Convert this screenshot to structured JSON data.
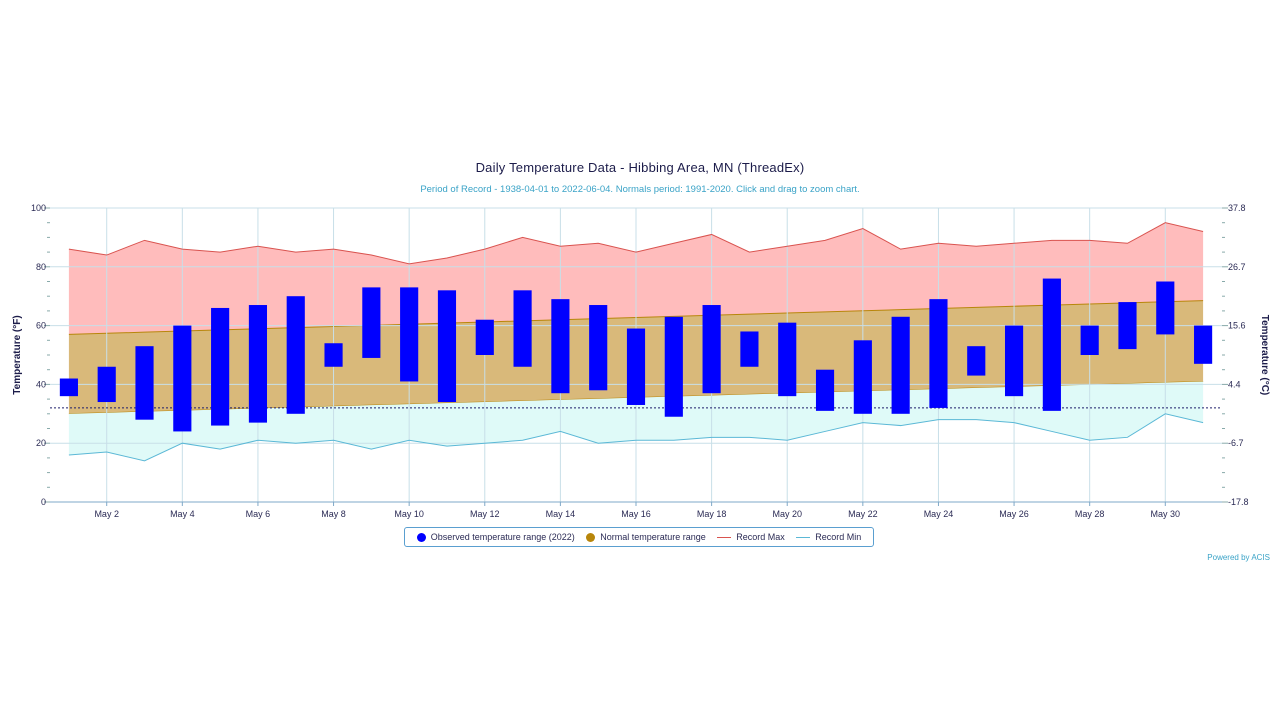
{
  "chart_data": {
    "type": "bar",
    "title": "Daily Temperature Data - Hibbing Area, MN (ThreadEx)",
    "subtitle": "Period of Record - 1938-04-01 to 2022-06-04. Normals period: 1991-2020. Click and drag to zoom chart.",
    "ylabel": "Temperature (°F)",
    "ylabel_right": "Temperature (°C)",
    "ylim": [
      0,
      100
    ],
    "y_ticks": [
      0,
      20,
      40,
      60,
      80,
      100
    ],
    "y_ticks_right": [
      "-17.8",
      "-6.7",
      "4.4",
      "15.6",
      "26.7",
      "37.8"
    ],
    "x_tick_labels": [
      "May 2",
      "May 4",
      "May 6",
      "May 8",
      "May 10",
      "May 12",
      "May 14",
      "May 16",
      "May 18",
      "May 20",
      "May 22",
      "May 24",
      "May 26",
      "May 28",
      "May 30"
    ],
    "x_tick_days": [
      2,
      4,
      6,
      8,
      10,
      12,
      14,
      16,
      18,
      20,
      22,
      24,
      26,
      28,
      30
    ],
    "days": [
      1,
      2,
      3,
      4,
      5,
      6,
      7,
      8,
      9,
      10,
      11,
      12,
      13,
      14,
      15,
      16,
      17,
      18,
      19,
      20,
      21,
      22,
      23,
      24,
      25,
      26,
      27,
      28,
      29,
      30,
      31
    ],
    "freezing_line_f": 32,
    "grid": true,
    "legend_position": "bottom",
    "series": [
      {
        "name": "Observed temperature range (2022)",
        "type": "columnrange",
        "color": "#0000ff",
        "low": [
          36,
          34,
          28,
          24,
          26,
          27,
          30,
          46,
          49,
          41,
          34,
          50,
          46,
          37,
          38,
          33,
          29,
          37,
          46,
          36,
          31,
          30,
          30,
          32,
          43,
          36,
          31,
          50,
          52,
          57,
          47
        ],
        "high": [
          42,
          46,
          53,
          60,
          66,
          67,
          70,
          54,
          73,
          73,
          72,
          62,
          72,
          69,
          67,
          59,
          63,
          67,
          58,
          61,
          45,
          55,
          63,
          69,
          53,
          60,
          76,
          60,
          68,
          75,
          60
        ]
      },
      {
        "name": "Normal temperature range",
        "type": "arearange",
        "color": "#b8860b",
        "low_start": 30,
        "low_end": 41,
        "high_start": 57,
        "high_end": 68.5
      },
      {
        "name": "Record Max",
        "type": "line",
        "color": "#d9534f",
        "values": [
          86,
          84,
          89,
          86,
          85,
          87,
          85,
          86,
          84,
          81,
          83,
          86,
          90,
          87,
          88,
          85,
          88,
          91,
          85,
          87,
          89,
          93,
          86,
          88,
          87,
          88,
          89,
          89,
          88,
          95,
          92
        ]
      },
      {
        "name": "Record Min",
        "type": "line",
        "color": "#5bb8d6",
        "values": [
          16,
          17,
          14,
          20,
          18,
          21,
          20,
          21,
          18,
          21,
          19,
          20,
          21,
          24,
          20,
          21,
          21,
          22,
          22,
          21,
          24,
          27,
          26,
          28,
          28,
          27,
          24,
          21,
          22,
          30,
          27
        ]
      }
    ]
  },
  "colors": {
    "record_max_fill": "#ffbcbc",
    "normal_fill": "#d9b97a",
    "record_min_fill": "#dffaf8",
    "observed": "#0000ff",
    "grid": "#c8dfe8",
    "axis": "#7fa8c8"
  },
  "credit": "Powered by ACIS"
}
